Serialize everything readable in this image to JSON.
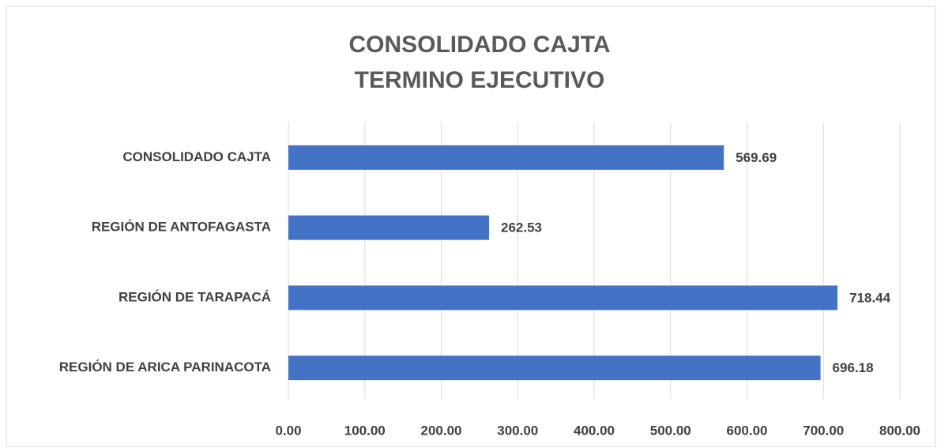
{
  "chart_data": {
    "type": "barh",
    "title": [
      "CONSOLIDADO CAJTA",
      "TERMINO EJECUTIVO"
    ],
    "categories": [
      "CONSOLIDADO CAJTA",
      "REGIÓN DE ANTOFAGASTA",
      "REGIÓN DE TARAPACÁ",
      "REGIÓN DE ARICA PARINACOTA"
    ],
    "values": [
      569.69,
      262.53,
      718.44,
      696.18
    ],
    "color": "#4472c4",
    "xlim": [
      0,
      800
    ],
    "xticks": [
      {
        "value": 0,
        "label": "0.00"
      },
      {
        "value": 100,
        "label": "100.00"
      },
      {
        "value": 200,
        "label": "200.00"
      },
      {
        "value": 300,
        "label": "300.00"
      },
      {
        "value": 400,
        "label": "400.00"
      },
      {
        "value": 500,
        "label": "500.00"
      },
      {
        "value": 600,
        "label": "600.00"
      },
      {
        "value": 700,
        "label": "700.00"
      },
      {
        "value": 800,
        "label": "800.00"
      }
    ],
    "grid": true
  }
}
